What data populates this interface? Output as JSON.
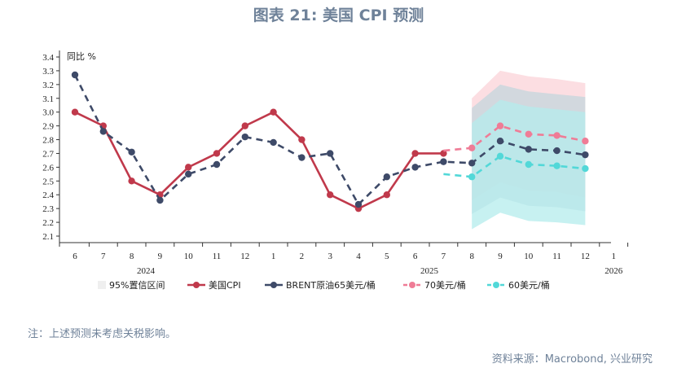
{
  "title": "图表 21: 美国 CPI 预测",
  "note": "注：上述预测未考虑关税影响。",
  "source": "资料来源：Macrobond, 兴业研究",
  "chart_data": {
    "type": "line",
    "unit_label": "同比 %",
    "ylim": [
      2.1,
      3.4
    ],
    "y_ticks": [
      "2.1",
      "2.2",
      "2.3",
      "2.4",
      "2.5",
      "2.6",
      "2.7",
      "2.8",
      "2.9",
      "3.0",
      "3.1",
      "3.2",
      "3.3",
      "3.4"
    ],
    "x_months": [
      "6",
      "7",
      "8",
      "9",
      "10",
      "11",
      "12",
      "1",
      "2",
      "3",
      "4",
      "5",
      "6",
      "7",
      "8",
      "9",
      "10",
      "11",
      "12",
      "1"
    ],
    "years": [
      {
        "label": "2024",
        "center": 2.5
      },
      {
        "label": "2025",
        "center": 12.5
      },
      {
        "label": "2026",
        "center": 19
      }
    ],
    "series": [
      {
        "name": "美国CPI",
        "color": "#c0394b",
        "style": "solid",
        "points": [
          [
            0,
            3.0
          ],
          [
            1,
            2.9
          ],
          [
            2,
            2.5
          ],
          [
            3,
            2.4
          ],
          [
            4,
            2.6
          ],
          [
            5,
            2.7
          ],
          [
            6,
            2.9
          ],
          [
            7,
            3.0
          ],
          [
            8,
            2.8
          ],
          [
            9,
            2.4
          ],
          [
            10,
            2.3
          ],
          [
            11,
            2.4
          ],
          [
            12,
            2.7
          ],
          [
            13,
            2.7
          ]
        ]
      },
      {
        "name": "BRENT原油65美元/桶",
        "color": "#3e4a68",
        "style": "dashed",
        "points": [
          [
            0,
            3.27
          ],
          [
            1,
            2.86
          ],
          [
            2,
            2.71
          ],
          [
            3,
            2.36
          ],
          [
            4,
            2.55
          ],
          [
            5,
            2.62
          ],
          [
            6,
            2.82
          ],
          [
            7,
            2.78
          ],
          [
            8,
            2.67
          ],
          [
            9,
            2.7
          ],
          [
            10,
            2.33
          ],
          [
            11,
            2.53
          ],
          [
            12,
            2.6
          ],
          [
            13,
            2.64
          ],
          [
            14,
            2.63
          ],
          [
            15,
            2.79
          ],
          [
            16,
            2.73
          ],
          [
            17,
            2.72
          ],
          [
            18,
            2.69
          ]
        ]
      },
      {
        "name": "70美元/桶",
        "color": "#ef7c96",
        "style": "dashed",
        "points": [
          [
            13,
            2.72
          ],
          [
            14,
            2.74
          ],
          [
            15,
            2.9
          ],
          [
            16,
            2.84
          ],
          [
            17,
            2.83
          ],
          [
            18,
            2.79
          ]
        ]
      },
      {
        "name": "60美元/桶",
        "color": "#52d8d8",
        "style": "dashed",
        "points": [
          [
            13,
            2.55
          ],
          [
            14,
            2.53
          ],
          [
            15,
            2.68
          ],
          [
            16,
            2.62
          ],
          [
            17,
            2.61
          ],
          [
            18,
            2.59
          ]
        ]
      }
    ],
    "confidence_bands": {
      "label": "95%置信区间",
      "x": [
        14,
        15,
        16,
        17,
        18
      ],
      "upper_70": [
        3.1,
        3.3,
        3.26,
        3.24,
        3.21
      ],
      "lower_70": [
        2.36,
        2.49,
        2.43,
        2.42,
        2.38
      ],
      "upper_65": [
        3.03,
        3.2,
        3.15,
        3.13,
        3.11
      ],
      "lower_65": [
        2.26,
        2.38,
        2.32,
        2.31,
        2.28
      ],
      "upper_60": [
        2.92,
        3.09,
        3.04,
        3.02,
        3.0
      ],
      "lower_60": [
        2.15,
        2.27,
        2.21,
        2.2,
        2.18
      ],
      "color_70": "#fbd3d8",
      "color_65": "#c4d6dc",
      "color_60": "#b4ecec"
    },
    "legend": [
      {
        "label": "95%置信区间",
        "kind": "box",
        "color": "#efefef"
      },
      {
        "label": "美国CPI",
        "kind": "line",
        "color": "#c0394b"
      },
      {
        "label": "BRENT原油65美元/桶",
        "kind": "line",
        "color": "#3e4a68"
      },
      {
        "label": "70美元/桶",
        "kind": "dash",
        "color": "#ef7c96"
      },
      {
        "label": "60美元/桶",
        "kind": "dash",
        "color": "#52d8d8"
      }
    ]
  }
}
